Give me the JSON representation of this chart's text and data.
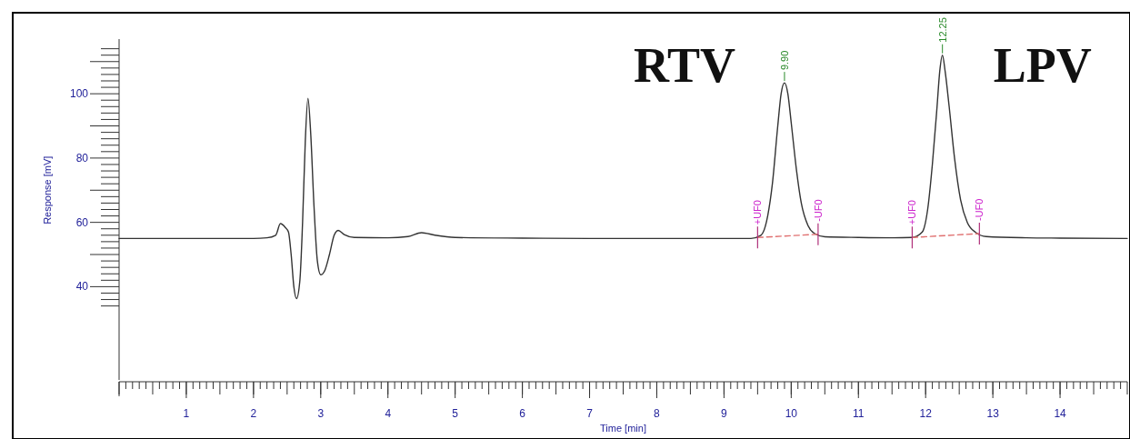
{
  "chart_data": {
    "type": "line",
    "xlabel": "Time [min]",
    "ylabel": "Response [mV]",
    "xlim": [
      0,
      15
    ],
    "ylim": [
      11,
      117
    ],
    "xticks": [
      1,
      2,
      3,
      4,
      5,
      6,
      7,
      8,
      9,
      10,
      11,
      12,
      13,
      14
    ],
    "yticks": [
      40,
      60,
      80,
      100
    ],
    "grid": false,
    "marker": "none",
    "series": [
      {
        "color": "#333333",
        "line_style": "solid",
        "x": [
          0,
          1,
          2,
          2.2,
          2.33,
          2.4,
          2.47,
          2.52,
          2.56,
          2.6,
          2.64,
          2.69,
          2.73,
          2.77,
          2.81,
          2.85,
          2.9,
          2.95,
          3.0,
          3.06,
          3.13,
          3.2,
          3.26,
          3.35,
          3.5,
          4.0,
          4.3,
          4.5,
          4.7,
          5,
          6,
          7,
          8,
          9,
          9.4,
          9.55,
          9.65,
          9.72,
          9.8,
          9.85,
          9.9,
          9.95,
          10.0,
          10.08,
          10.15,
          10.25,
          10.35,
          10.5,
          11,
          11.5,
          11.8,
          11.95,
          12.03,
          12.1,
          12.17,
          12.21,
          12.25,
          12.29,
          12.35,
          12.43,
          12.52,
          12.62,
          12.75,
          12.9,
          13.5,
          14,
          15
        ],
        "values": [
          55,
          55,
          55,
          55.2,
          56,
          59.6,
          58.5,
          57,
          50,
          40,
          36.3,
          42,
          60,
          85,
          98.6,
          88,
          65,
          48,
          43.7,
          45,
          50,
          56,
          57.5,
          56.2,
          55.3,
          55.2,
          55.6,
          56.8,
          56,
          55.3,
          55.1,
          55,
          55,
          55,
          55,
          56,
          62,
          72,
          90,
          100,
          103.4,
          100,
          91,
          76,
          66,
          59,
          56.5,
          55.5,
          55.3,
          55.2,
          55.3,
          57,
          64,
          78,
          96,
          107,
          112,
          107,
          96,
          80,
          67,
          60,
          56.8,
          55.6,
          55.2,
          55.1,
          55
        ]
      },
      {
        "color": "#e07070",
        "line_style": "dashed",
        "x": [
          9.5,
          10.4
        ],
        "values": [
          55.3,
          56.3
        ]
      },
      {
        "color": "#e07070",
        "line_style": "dashed",
        "x": [
          11.8,
          12.8
        ],
        "values": [
          55.3,
          56.5
        ]
      }
    ],
    "annotations": [
      "RTV",
      "LPV",
      {
        "text": "9.90",
        "x": 9.9,
        "y": 103.4
      },
      {
        "text": "12.25",
        "x": 12.25,
        "y": 112
      },
      {
        "text": "+UF0",
        "x": 9.5,
        "y": 55.3
      },
      {
        "text": "-UF0",
        "x": 10.4,
        "y": 56.3
      },
      {
        "text": "+UF0",
        "x": 11.8,
        "y": 55.3
      },
      {
        "text": "-UF0",
        "x": 12.8,
        "y": 56.5
      }
    ]
  }
}
